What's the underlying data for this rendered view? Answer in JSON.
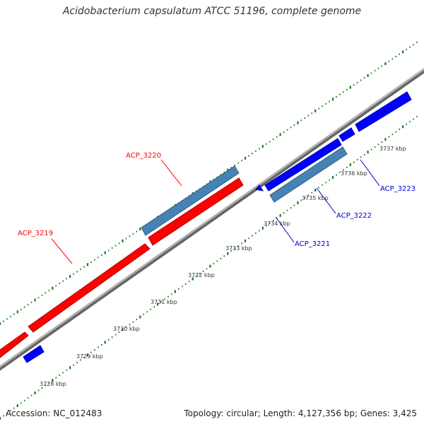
{
  "title": "Acidobacterium capsulatum ATCC 51196, complete genome",
  "footer": {
    "accession": "Accession: NC_012483",
    "summary": "Topology: circular; Length: 4,127,356 bp; Genes: 3,425"
  },
  "colors": {
    "backbone": "#8c8c8c",
    "forward_cds": "#ff0000",
    "reverse_cds": "#0000ff",
    "rna_like": "#4682b4",
    "tick": "#1a7a1a",
    "label_red": "#ff0000",
    "label_blue": "#0000cc"
  },
  "ticks": [
    "3728 kbp",
    "3729 kbp",
    "3730 kbp",
    "3731 kbp",
    "3732 kbp",
    "3733 kbp",
    "3734 kbp",
    "3735 kbp",
    "3736 kbp",
    "3737 kbp"
  ],
  "gene_labels": [
    {
      "name": "ACP_3219",
      "color": "red"
    },
    {
      "name": "ACP_3220",
      "color": "red"
    },
    {
      "name": "ACP_3221",
      "color": "blue"
    },
    {
      "name": "ACP_3222",
      "color": "blue"
    },
    {
      "name": "ACP_3223",
      "color": "blue"
    }
  ]
}
